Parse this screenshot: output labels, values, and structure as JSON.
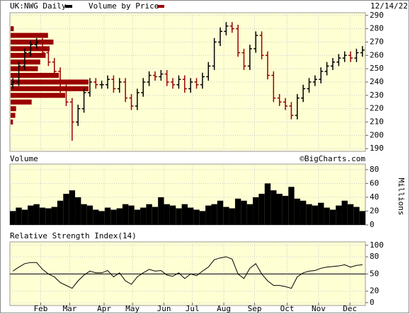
{
  "chart_data": [
    {
      "type": "ohlc",
      "date": "12/14/22",
      "series": [
        {
          "name": "UK:NWG Daily",
          "color": "#000000",
          "down_color": "#990000",
          "open": [
            238,
            240,
            252,
            262,
            268,
            270,
            262,
            255,
            248,
            235,
            225,
            210,
            220,
            232,
            240,
            238,
            238,
            242,
            235,
            240,
            228,
            222,
            232,
            240,
            245,
            244,
            246,
            240,
            238,
            242,
            235,
            240,
            238,
            244,
            252,
            270,
            278,
            282,
            280,
            262,
            252,
            265,
            275,
            260,
            245,
            228,
            225,
            222,
            215,
            228,
            235,
            240,
            242,
            248,
            252,
            255,
            258,
            260,
            258,
            262
          ],
          "high": [
            243,
            255,
            265,
            271,
            273,
            273,
            265,
            258,
            251,
            238,
            228,
            223,
            235,
            243,
            243,
            241,
            245,
            245,
            243,
            243,
            231,
            235,
            243,
            248,
            248,
            249,
            249,
            243,
            245,
            245,
            243,
            243,
            247,
            255,
            273,
            281,
            285,
            285,
            283,
            265,
            268,
            278,
            278,
            263,
            248,
            231,
            228,
            225,
            231,
            238,
            243,
            245,
            251,
            255,
            258,
            261,
            263,
            263,
            265,
            267
          ],
          "low": [
            235,
            237,
            249,
            259,
            265,
            259,
            252,
            245,
            232,
            222,
            196,
            207,
            217,
            229,
            235,
            235,
            235,
            232,
            232,
            225,
            219,
            219,
            229,
            237,
            241,
            241,
            237,
            235,
            235,
            232,
            232,
            235,
            235,
            241,
            249,
            267,
            275,
            277,
            259,
            249,
            249,
            262,
            257,
            242,
            225,
            222,
            219,
            212,
            212,
            225,
            232,
            237,
            239,
            245,
            249,
            252,
            255,
            255,
            255,
            259
          ],
          "close": [
            240,
            252,
            262,
            268,
            270,
            262,
            255,
            248,
            235,
            225,
            210,
            220,
            232,
            240,
            238,
            238,
            242,
            235,
            240,
            228,
            222,
            232,
            240,
            245,
            244,
            246,
            240,
            238,
            242,
            235,
            240,
            238,
            244,
            252,
            270,
            278,
            282,
            280,
            262,
            252,
            265,
            275,
            260,
            245,
            228,
            225,
            222,
            215,
            228,
            235,
            240,
            242,
            248,
            252,
            255,
            258,
            260,
            258,
            262,
            264
          ]
        }
      ],
      "volume_by_price": {
        "name": "Volume by Price",
        "color": "#990000",
        "levels": [
          210,
          215,
          220,
          225,
          230,
          235,
          240,
          245,
          250,
          255,
          260,
          265,
          270,
          275,
          280
        ],
        "values": [
          3,
          6,
          7,
          27,
          70,
          100,
          100,
          62,
          35,
          38,
          45,
          50,
          55,
          48,
          4
        ]
      },
      "xlim": [
        -0.5,
        59.5
      ],
      "xticks": [
        {
          "value": 4.7,
          "label": "Feb"
        },
        {
          "value": 9.6,
          "label": "Mar"
        },
        {
          "value": 15.4,
          "label": "Apr"
        },
        {
          "value": 20.2,
          "label": "May"
        },
        {
          "value": 25.5,
          "label": "Jun"
        },
        {
          "value": 30.3,
          "label": "Jul"
        },
        {
          "value": 35.6,
          "label": "Aug"
        },
        {
          "value": 40.8,
          "label": "Sep"
        },
        {
          "value": 46.3,
          "label": "Oct"
        },
        {
          "value": 51.6,
          "label": "Nov"
        },
        {
          "value": 56.9,
          "label": "Dec"
        }
      ],
      "ylim": [
        188,
        292
      ],
      "yticks": [
        190,
        200,
        210,
        220,
        230,
        240,
        250,
        260,
        270,
        280,
        290
      ],
      "grid": true
    },
    {
      "type": "bar",
      "title": "Volume",
      "annotation": "©BigCharts.com",
      "ylabel": "Millions",
      "color": "#000000",
      "values": [
        20,
        25,
        22,
        28,
        30,
        25,
        24,
        26,
        35,
        45,
        50,
        40,
        30,
        28,
        22,
        20,
        25,
        22,
        24,
        30,
        28,
        22,
        25,
        30,
        26,
        40,
        30,
        28,
        24,
        30,
        25,
        22,
        20,
        28,
        30,
        35,
        26,
        24,
        38,
        35,
        30,
        40,
        45,
        60,
        50,
        45,
        42,
        55,
        38,
        35,
        30,
        28,
        32,
        25,
        22,
        28,
        35,
        30,
        26,
        20
      ],
      "ylim": [
        0,
        88
      ],
      "yticks": [
        0,
        20,
        40,
        60,
        80
      ],
      "grid": true
    },
    {
      "type": "line",
      "title": "Relative Strength Index(14)",
      "color": "#000000",
      "reference": 50,
      "values": [
        55,
        62,
        68,
        70,
        70,
        58,
        50,
        45,
        35,
        30,
        25,
        38,
        48,
        55,
        52,
        52,
        56,
        45,
        52,
        38,
        32,
        45,
        52,
        58,
        55,
        56,
        48,
        46,
        52,
        42,
        50,
        47,
        55,
        62,
        75,
        78,
        80,
        76,
        50,
        42,
        60,
        68,
        50,
        38,
        30,
        30,
        28,
        25,
        45,
        52,
        55,
        56,
        60,
        62,
        63,
        64,
        66,
        62,
        65,
        66
      ],
      "ylim": [
        -5,
        106
      ],
      "yticks": [
        0,
        20,
        50,
        80,
        100
      ],
      "grid": true
    }
  ]
}
